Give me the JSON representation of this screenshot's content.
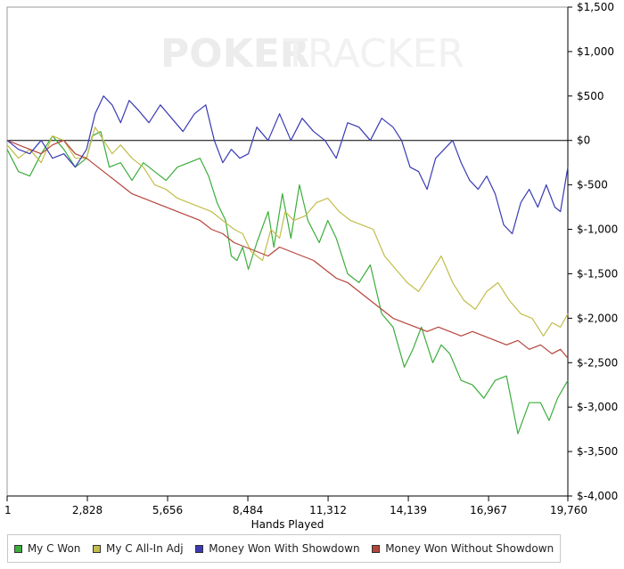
{
  "watermark": {
    "text_strong": "POKER",
    "text_light": "TRACKER"
  },
  "chart_data": {
    "type": "line",
    "title": "",
    "xlabel": "Hands Played",
    "ylabel": "",
    "xlim": [
      1,
      19760
    ],
    "ylim": [
      -4000,
      1500
    ],
    "x_ticks": [
      1,
      2828,
      5656,
      8484,
      11312,
      14139,
      16967,
      19760
    ],
    "x_tick_labels": [
      "1",
      "2,828",
      "5,656",
      "8,484",
      "11,312",
      "14,139",
      "16,967",
      "19,760"
    ],
    "y_ticks": [
      1500,
      1000,
      500,
      0,
      -500,
      -1000,
      -1500,
      -2000,
      -2500,
      -3000,
      -3500,
      -4000
    ],
    "y_tick_labels": [
      "$1,500",
      "$1,000",
      "$500",
      "$0",
      "$-500",
      "$-1,000",
      "$-1,500",
      "$-2,000",
      "$-2,500",
      "$-3,000",
      "$-3,500",
      "$-4,000"
    ],
    "zero_line": true,
    "grid": false,
    "legend_position": "bottom",
    "series": [
      {
        "name": "My C Won",
        "color": "#3cad3c",
        "x": [
          1,
          400,
          800,
          1200,
          1600,
          2000,
          2400,
          2800,
          3000,
          3300,
          3600,
          4000,
          4400,
          4800,
          5200,
          5600,
          6000,
          6400,
          6800,
          7100,
          7400,
          7700,
          7900,
          8100,
          8300,
          8500,
          8800,
          9200,
          9400,
          9700,
          10000,
          10300,
          10600,
          11000,
          11300,
          11600,
          12000,
          12400,
          12800,
          13200,
          13600,
          14000,
          14300,
          14600,
          15000,
          15300,
          15600,
          16000,
          16400,
          16800,
          17200,
          17600,
          18000,
          18400,
          18800,
          19100,
          19400,
          19760
        ],
        "y": [
          -100,
          -350,
          -400,
          -150,
          50,
          -100,
          -300,
          -200,
          50,
          100,
          -300,
          -250,
          -450,
          -250,
          -350,
          -450,
          -300,
          -250,
          -200,
          -400,
          -700,
          -900,
          -1300,
          -1350,
          -1200,
          -1450,
          -1150,
          -800,
          -1200,
          -600,
          -1100,
          -500,
          -900,
          -1150,
          -900,
          -1100,
          -1500,
          -1600,
          -1400,
          -1950,
          -2100,
          -2550,
          -2350,
          -2100,
          -2500,
          -2300,
          -2400,
          -2700,
          -2750,
          -2900,
          -2700,
          -2650,
          -3300,
          -2950,
          -2950,
          -3150,
          -2900,
          -2700
        ]
      },
      {
        "name": "My C All-In Adj",
        "color": "#c2bd4a",
        "x": [
          1,
          400,
          800,
          1200,
          1600,
          2000,
          2400,
          2800,
          3100,
          3400,
          3700,
          4000,
          4400,
          4800,
          5200,
          5600,
          6000,
          6400,
          6800,
          7200,
          7600,
          8000,
          8300,
          8600,
          9000,
          9300,
          9600,
          9800,
          10100,
          10500,
          10900,
          11300,
          11700,
          12100,
          12500,
          12900,
          13300,
          13700,
          14100,
          14500,
          14900,
          15300,
          15700,
          16100,
          16500,
          16900,
          17300,
          17700,
          18100,
          18500,
          18900,
          19200,
          19500,
          19760
        ],
        "y": [
          -50,
          -200,
          -100,
          -250,
          50,
          0,
          -200,
          -200,
          150,
          0,
          -150,
          -50,
          -200,
          -300,
          -500,
          -550,
          -650,
          -700,
          -750,
          -800,
          -900,
          -1000,
          -1050,
          -1250,
          -1350,
          -1000,
          -1100,
          -800,
          -900,
          -850,
          -700,
          -650,
          -800,
          -900,
          -950,
          -1000,
          -1300,
          -1450,
          -1600,
          -1700,
          -1500,
          -1300,
          -1600,
          -1800,
          -1900,
          -1700,
          -1600,
          -1800,
          -1950,
          -2000,
          -2200,
          -2050,
          -2100,
          -1950
        ]
      },
      {
        "name": "Money Won With Showdown",
        "color": "#3a3ab4",
        "x": [
          1,
          400,
          800,
          1200,
          1600,
          2000,
          2400,
          2800,
          3100,
          3400,
          3700,
          4000,
          4300,
          4600,
          5000,
          5400,
          5800,
          6200,
          6600,
          7000,
          7300,
          7600,
          7900,
          8200,
          8500,
          8800,
          9200,
          9600,
          10000,
          10400,
          10800,
          11200,
          11600,
          12000,
          12400,
          12800,
          13200,
          13600,
          13900,
          14200,
          14500,
          14800,
          15100,
          15400,
          15700,
          16000,
          16300,
          16600,
          16900,
          17200,
          17500,
          17800,
          18100,
          18400,
          18700,
          19000,
          19300,
          19500,
          19760
        ],
        "y": [
          0,
          -100,
          -150,
          0,
          -200,
          -150,
          -300,
          -100,
          300,
          500,
          400,
          200,
          450,
          350,
          200,
          400,
          250,
          100,
          300,
          400,
          0,
          -250,
          -100,
          -200,
          -150,
          150,
          0,
          300,
          0,
          250,
          100,
          0,
          -200,
          200,
          150,
          0,
          250,
          150,
          0,
          -300,
          -350,
          -550,
          -200,
          -100,
          0,
          -250,
          -450,
          -550,
          -400,
          -600,
          -950,
          -1050,
          -700,
          -550,
          -750,
          -500,
          -750,
          -800,
          -300
        ]
      },
      {
        "name": "Money Won Without Showdown",
        "color": "#b5443b",
        "x": [
          1,
          400,
          800,
          1200,
          1600,
          2000,
          2400,
          2800,
          3200,
          3600,
          4000,
          4400,
          4800,
          5200,
          5600,
          6000,
          6400,
          6800,
          7200,
          7600,
          8000,
          8400,
          8800,
          9200,
          9600,
          10000,
          10400,
          10800,
          11200,
          11600,
          12000,
          12400,
          12800,
          13200,
          13600,
          14000,
          14400,
          14800,
          15200,
          15600,
          16000,
          16400,
          16800,
          17200,
          17600,
          18000,
          18400,
          18800,
          19200,
          19500,
          19760
        ],
        "y": [
          0,
          -50,
          -100,
          -150,
          -50,
          0,
          -150,
          -200,
          -300,
          -400,
          -500,
          -600,
          -650,
          -700,
          -750,
          -800,
          -850,
          -900,
          -1000,
          -1050,
          -1150,
          -1200,
          -1250,
          -1300,
          -1200,
          -1250,
          -1300,
          -1350,
          -1450,
          -1550,
          -1600,
          -1700,
          -1800,
          -1900,
          -2000,
          -2050,
          -2100,
          -2150,
          -2100,
          -2150,
          -2200,
          -2150,
          -2200,
          -2250,
          -2300,
          -2250,
          -2350,
          -2300,
          -2400,
          -2350,
          -2450
        ]
      }
    ]
  }
}
